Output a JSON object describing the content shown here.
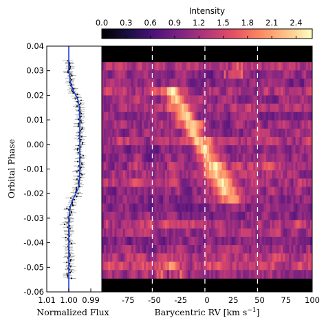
{
  "chart_data": [
    {
      "type": "line",
      "xlabel": "Normalized Flux",
      "ylabel": "Orbital Phase",
      "xlim": [
        1.01,
        0.985
      ],
      "ylim": [
        -0.06,
        0.04
      ],
      "x_ticks": [
        "1.01",
        "1.00",
        "0.99"
      ],
      "x_tick_values": [
        1.01,
        1.0,
        0.99
      ],
      "y_ticks": [
        "0.04",
        "0.03",
        "0.02",
        "0.01",
        "0.00",
        "-0.01",
        "-0.02",
        "-0.03",
        "-0.04",
        "-0.05",
        "-0.06"
      ],
      "y_tick_values": [
        0.04,
        0.03,
        0.02,
        0.01,
        0.0,
        -0.01,
        -0.02,
        -0.03,
        -0.04,
        -0.05,
        -0.06
      ],
      "model_color": "#1f3fd0",
      "data_color": "#000000",
      "model_curve": {
        "phase": [
          -0.06,
          -0.05,
          -0.04,
          -0.03,
          -0.025,
          -0.022,
          -0.02,
          -0.018,
          -0.015,
          -0.01,
          0.0,
          0.01,
          0.015,
          0.018,
          0.02,
          0.022,
          0.025,
          0.03,
          0.04
        ],
        "flux": [
          1.0,
          1.0,
          1.0,
          1.0,
          0.9992,
          0.998,
          0.9968,
          0.9958,
          0.9952,
          0.995,
          0.995,
          0.995,
          0.9952,
          0.9958,
          0.9968,
          0.998,
          0.9992,
          1.0,
          1.0
        ]
      }
    },
    {
      "type": "heatmap",
      "title": "Intensity",
      "xlabel": "Barycentric RV [km s⁻¹]",
      "xlim": [
        -100,
        100
      ],
      "ylim": [
        -0.06,
        0.04
      ],
      "x_ticks": [
        "-75",
        "-50",
        "-25",
        "0",
        "25",
        "50",
        "75",
        "100"
      ],
      "x_tick_values": [
        -75,
        -50,
        -25,
        0,
        25,
        50,
        75,
        100
      ],
      "colorbar": {
        "label": "Intensity",
        "range": [
          0.0,
          2.6
        ],
        "ticks": [
          "0.0",
          "0.3",
          "0.6",
          "0.9",
          "1.2",
          "1.5",
          "1.8",
          "2.1",
          "2.4"
        ],
        "tick_values": [
          0.0,
          0.3,
          0.6,
          0.9,
          1.2,
          1.5,
          1.8,
          2.1,
          2.4
        ],
        "colormap": "magma"
      },
      "dashed_lines_rv": [
        -52,
        -2,
        48
      ],
      "dashed_line_color": "#ffffff",
      "data_phase_range": [
        -0.0545,
        0.0335
      ],
      "in_transit_phase_range": [
        -0.025,
        0.025
      ],
      "planet_track": {
        "phase": [
          0.01,
          0.0,
          -0.01,
          -0.02
        ],
        "rv": [
          -20,
          -3,
          8,
          20
        ]
      }
    }
  ]
}
